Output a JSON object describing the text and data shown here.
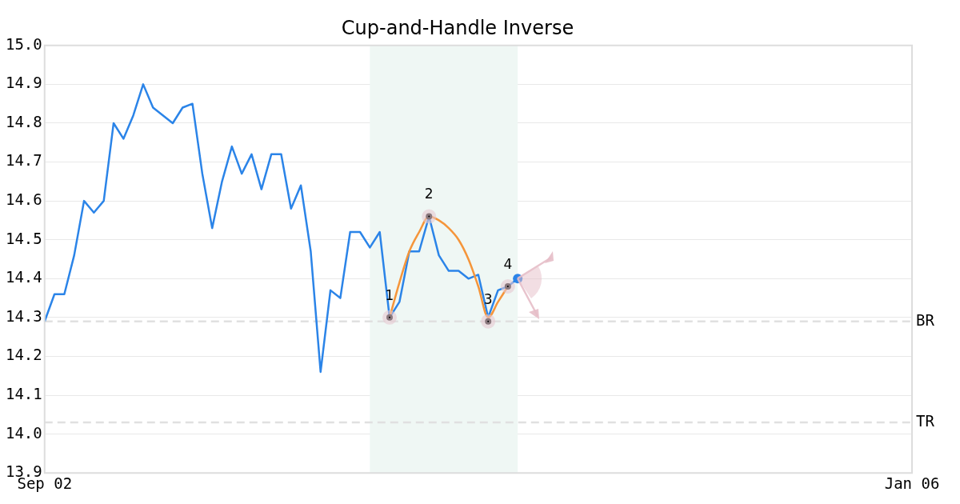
{
  "chart_data": {
    "type": "line",
    "title": "Cup-and-Handle Inverse",
    "categories": [
      "Sep 02",
      null,
      null,
      null,
      null,
      null,
      null,
      null,
      null,
      null,
      null,
      null,
      null,
      null,
      null,
      null,
      null,
      null,
      null,
      null,
      null,
      null,
      null,
      null,
      null,
      null,
      null,
      null,
      null,
      null,
      null,
      null,
      null,
      null,
      null,
      null,
      null,
      null,
      null,
      null,
      null,
      null,
      null,
      null,
      null,
      null,
      null,
      null,
      null,
      null,
      null,
      null,
      null,
      null,
      null,
      null,
      null,
      null,
      null,
      null,
      null,
      null,
      null,
      null,
      null,
      null,
      null,
      null,
      null,
      null,
      null,
      null,
      null,
      null,
      null,
      null,
      null,
      null,
      null,
      null,
      null,
      null,
      null,
      null,
      null,
      null,
      null,
      null,
      "Jan 06"
    ],
    "ylim": [
      13.9,
      15.0
    ],
    "yticks": [
      {
        "value": 13.9,
        "label": "13.9"
      },
      {
        "value": 14.0,
        "label": "14.0"
      },
      {
        "value": 14.1,
        "label": "14.1"
      },
      {
        "value": 14.2,
        "label": "14.2"
      },
      {
        "value": 14.3,
        "label": "14.3"
      },
      {
        "value": 14.4,
        "label": "14.4"
      },
      {
        "value": 14.5,
        "label": "14.5"
      },
      {
        "value": 14.6,
        "label": "14.6"
      },
      {
        "value": 14.7,
        "label": "14.7"
      },
      {
        "value": 14.8,
        "label": "14.8"
      },
      {
        "value": 14.9,
        "label": "14.9"
      },
      {
        "value": 15.0,
        "label": "15.0"
      }
    ],
    "grid": "y",
    "legend": false,
    "series": [
      {
        "color": "#2b84e8",
        "values": [
          14.29,
          14.36,
          14.36,
          14.46,
          14.6,
          14.57,
          14.6,
          14.8,
          14.76,
          14.82,
          14.9,
          14.84,
          14.82,
          14.8,
          14.84,
          14.85,
          14.67,
          14.53,
          14.65,
          14.74,
          14.67,
          14.72,
          14.63,
          14.72,
          14.72,
          14.58,
          14.64,
          14.47,
          14.16,
          14.37,
          14.35,
          14.52,
          14.52,
          14.48,
          14.52,
          14.3,
          14.34,
          14.47,
          14.47,
          14.56,
          14.46,
          14.42,
          14.42,
          14.4,
          14.41,
          14.3,
          14.37,
          14.38,
          14.4,
          null,
          null,
          null,
          null,
          null,
          null,
          null,
          null,
          null,
          null,
          null,
          null,
          null,
          null,
          null,
          null,
          null,
          null,
          null,
          null,
          null,
          null,
          null,
          null,
          null,
          null,
          null,
          null,
          null,
          null,
          null,
          null,
          null,
          null,
          null,
          null,
          null,
          null,
          null,
          null
        ]
      },
      {
        "color": "#f5953a",
        "values": [
          null,
          null,
          null,
          null,
          null,
          null,
          null,
          null,
          null,
          null,
          null,
          null,
          null,
          null,
          null,
          null,
          null,
          null,
          null,
          null,
          null,
          null,
          null,
          null,
          null,
          null,
          null,
          null,
          null,
          null,
          null,
          null,
          null,
          null,
          null,
          14.3,
          14.39,
          14.47,
          14.52,
          14.56,
          14.55,
          14.53,
          14.5,
          14.45,
          14.38,
          14.3,
          14.34,
          14.38,
          null,
          null,
          null,
          null,
          null,
          null,
          null,
          null,
          null,
          null,
          null,
          null,
          null,
          null,
          null,
          null,
          null,
          null,
          null,
          null,
          null,
          null,
          null,
          null,
          null,
          null,
          null,
          null,
          null,
          null,
          null,
          null,
          null,
          null,
          null,
          null,
          null,
          null,
          null,
          null,
          null
        ]
      },
      {
        "type": "scatter",
        "color": "#000000",
        "values": [
          null,
          null,
          null,
          null,
          null,
          null,
          null,
          null,
          null,
          null,
          null,
          null,
          null,
          null,
          null,
          null,
          null,
          null,
          null,
          null,
          null,
          null,
          null,
          null,
          null,
          null,
          null,
          null,
          null,
          null,
          null,
          null,
          null,
          null,
          null,
          14.3,
          null,
          null,
          null,
          14.56,
          null,
          null,
          null,
          null,
          null,
          14.29,
          null,
          14.38,
          null,
          null,
          null,
          null,
          null,
          null,
          null,
          null,
          null,
          null,
          null,
          null,
          null,
          null,
          null,
          null,
          null,
          null,
          null,
          null,
          null,
          null,
          null,
          null,
          null,
          null,
          null,
          null,
          null,
          null,
          null,
          null,
          null,
          null,
          null,
          null,
          null,
          null,
          null,
          null,
          null
        ]
      }
    ],
    "annotations": [
      "1",
      "2",
      "3",
      "4"
    ],
    "ref_lines": [
      {
        "axis": "y",
        "value": 14.29,
        "label": "BR",
        "color": "#e0e0e0",
        "line_style": "dashed"
      },
      {
        "axis": "y",
        "value": 14.03,
        "label": "TR",
        "color": "#e0e0e0",
        "line_style": "dashed"
      }
    ]
  }
}
